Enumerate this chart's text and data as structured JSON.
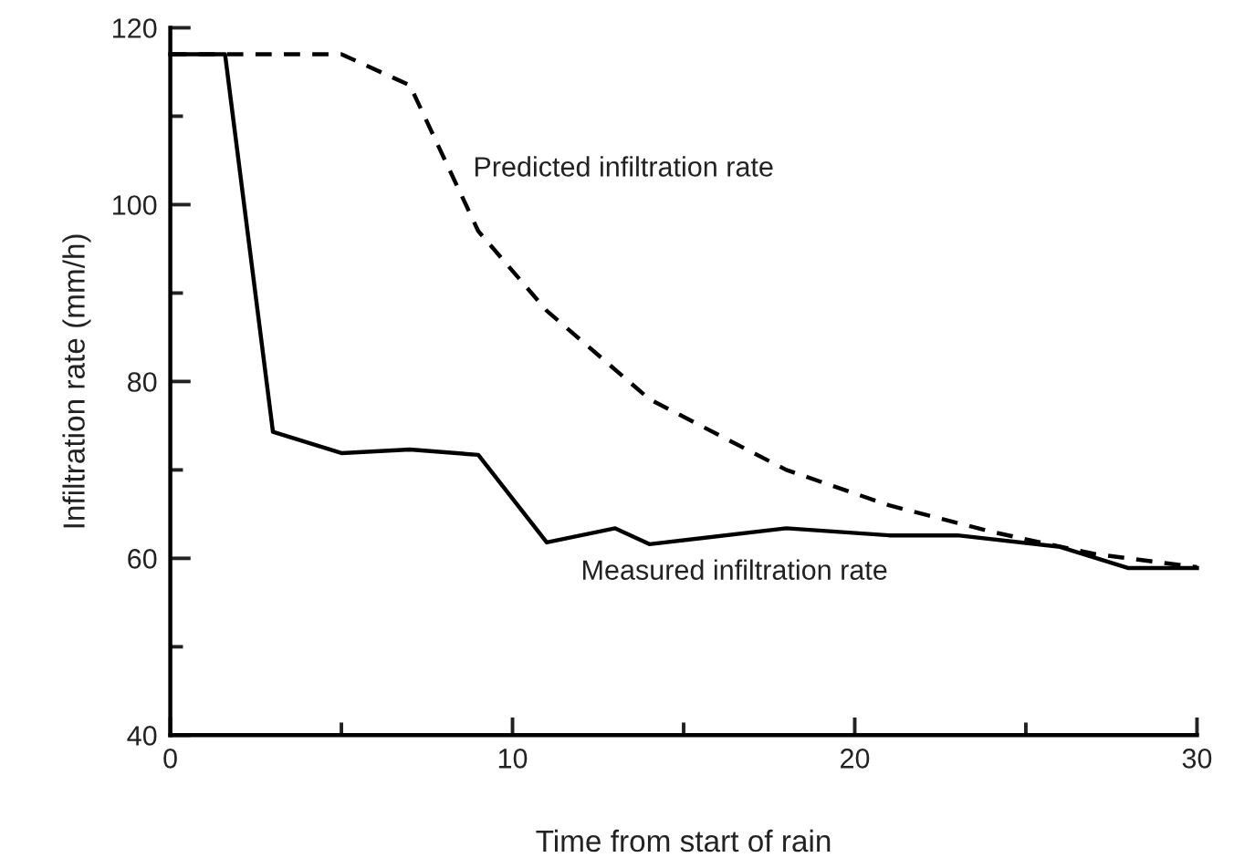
{
  "chart_data": {
    "type": "line",
    "xlabel": "Time from start of rain",
    "ylabel": "Infiltration rate (mm/h)",
    "xlim": [
      0,
      30
    ],
    "ylim": [
      40,
      120
    ],
    "xticks": [
      0,
      {
        "value": 5,
        "label": null
      },
      10,
      {
        "value": 15,
        "label": null
      },
      20,
      {
        "value": 25,
        "label": null
      },
      30
    ],
    "yticks": [
      40,
      {
        "value": 50,
        "label": null
      },
      60,
      {
        "value": 70,
        "label": null
      },
      80,
      {
        "value": 90,
        "label": null
      },
      100,
      {
        "value": 110,
        "label": null
      },
      120
    ],
    "grid": false,
    "legend": false,
    "marker": "none",
    "series": [
      {
        "name": "Predicted infiltration rate",
        "color": "#000000",
        "line_style": "dashed",
        "x": [
          0,
          5,
          7,
          9,
          11,
          14,
          18,
          21,
          24,
          27,
          30
        ],
        "values": [
          117,
          117,
          113.5,
          97,
          88,
          78,
          70,
          66,
          63,
          60.5,
          59
        ]
      },
      {
        "name": "Measured infiltration rate",
        "color": "#000000",
        "line_style": "solid",
        "x": [
          0,
          1.6,
          3,
          5,
          7,
          9,
          11,
          13,
          14,
          18,
          21,
          23,
          26,
          28,
          30
        ],
        "values": [
          117,
          117,
          74.3,
          71.9,
          72.3,
          71.7,
          61.8,
          63.4,
          61.6,
          63.4,
          62.6,
          62.6,
          61.3,
          58.9,
          58.9
        ]
      }
    ]
  }
}
